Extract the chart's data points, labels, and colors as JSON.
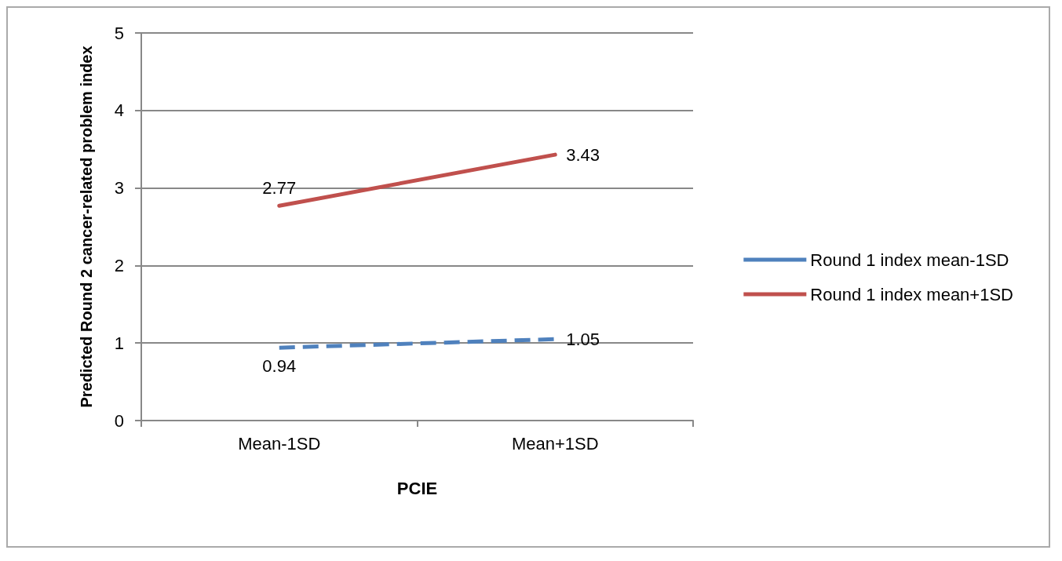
{
  "chart_data": {
    "type": "line",
    "xlabel": "PCIE",
    "ylabel": "Predicted Round 2 cancer-related problem index",
    "categories": [
      "Mean-1SD",
      "Mean+1SD"
    ],
    "series": [
      {
        "name": "Round 1 index mean-1SD",
        "color": "#4f81bd",
        "values": [
          0.94,
          1.05
        ],
        "line_style": "dashed"
      },
      {
        "name": "Round 1 index mean+1SD",
        "color": "#c0504d",
        "values": [
          2.77,
          3.43
        ],
        "line_style": "solid"
      }
    ],
    "ylim": [
      0,
      5
    ],
    "yticks": [
      0,
      1,
      2,
      3,
      4,
      5
    ],
    "grid": "y",
    "legend": "right",
    "data_labels": true,
    "marker": "none"
  }
}
